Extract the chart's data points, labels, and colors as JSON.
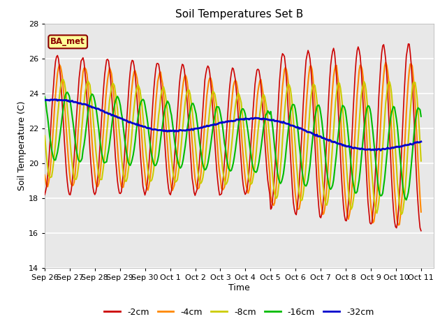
{
  "title": "Soil Temperatures Set B",
  "xlabel": "Time",
  "ylabel": "Soil Temperature (C)",
  "ylim": [
    14,
    28
  ],
  "background_color": "#e8e8e8",
  "grid_color": "white",
  "annotation_text": "BA_met",
  "annotation_facecolor": "#ffff99",
  "annotation_edgecolor": "#8B0000",
  "annotation_textcolor": "#8B0000",
  "legend_labels": [
    "-2cm",
    "-4cm",
    "-8cm",
    "-16cm",
    "-32cm"
  ],
  "line_colors": [
    "#cc0000",
    "#ff8800",
    "#cccc00",
    "#00bb00",
    "#0000cc"
  ],
  "line_widths": [
    1.2,
    1.5,
    1.5,
    1.5,
    2.0
  ],
  "tick_labels": [
    "Sep 26",
    "Sep 27",
    "Sep 28",
    "Sep 29",
    "Sep 30",
    "Oct 1",
    "Oct 2",
    "Oct 3",
    "Oct 4",
    "Oct 5",
    "Oct 6",
    "Oct 7",
    "Oct 8",
    "Oct 9",
    "Oct 10",
    "Oct 11"
  ],
  "yticks": [
    14,
    16,
    18,
    20,
    22,
    24,
    26,
    28
  ]
}
